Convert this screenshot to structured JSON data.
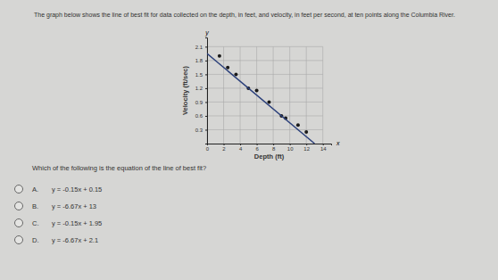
{
  "intro": "The graph below shows the line of best fit for data collected on the depth, in feet, and velocity, in feet per second, at ten points along the Columbia River.",
  "chart_data": {
    "type": "scatter",
    "x_label": "Depth (ft)",
    "y_label": "Velocity (ft/sec)",
    "annotations": [
      "y",
      "x"
    ],
    "xlim": [
      0,
      15
    ],
    "ylim": [
      0,
      2.3
    ],
    "xticks": [
      0,
      2,
      4,
      6,
      8,
      10,
      12,
      14
    ],
    "yticks": [
      0.3,
      0.6,
      0.9,
      1.2,
      1.5,
      1.8,
      2.1
    ],
    "grid": true,
    "series": [
      {
        "type": "scatter",
        "color": "#1a1a1a",
        "marker": "circle",
        "x": [
          1.5,
          2.5,
          3.5,
          5,
          6,
          7.5,
          9,
          9.5,
          11,
          12
        ],
        "values": [
          1.9,
          1.65,
          1.5,
          1.2,
          1.15,
          0.9,
          0.6,
          0.55,
          0.4,
          0.25
        ]
      },
      {
        "type": "line",
        "color": "#2a3f7a",
        "line_style": "solid",
        "x": [
          0,
          13
        ],
        "values": [
          1.95,
          0
        ]
      }
    ]
  },
  "question": "Which of the following is the equation of the line of best fit?",
  "choices": [
    {
      "letter": "A.",
      "text": "y = -0.15x + 0.15"
    },
    {
      "letter": "B.",
      "text": "y = -6.67x + 13"
    },
    {
      "letter": "C.",
      "text": "y = -0.15x + 1.95"
    },
    {
      "letter": "D.",
      "text": "y = -6.67x + 2.1"
    }
  ]
}
